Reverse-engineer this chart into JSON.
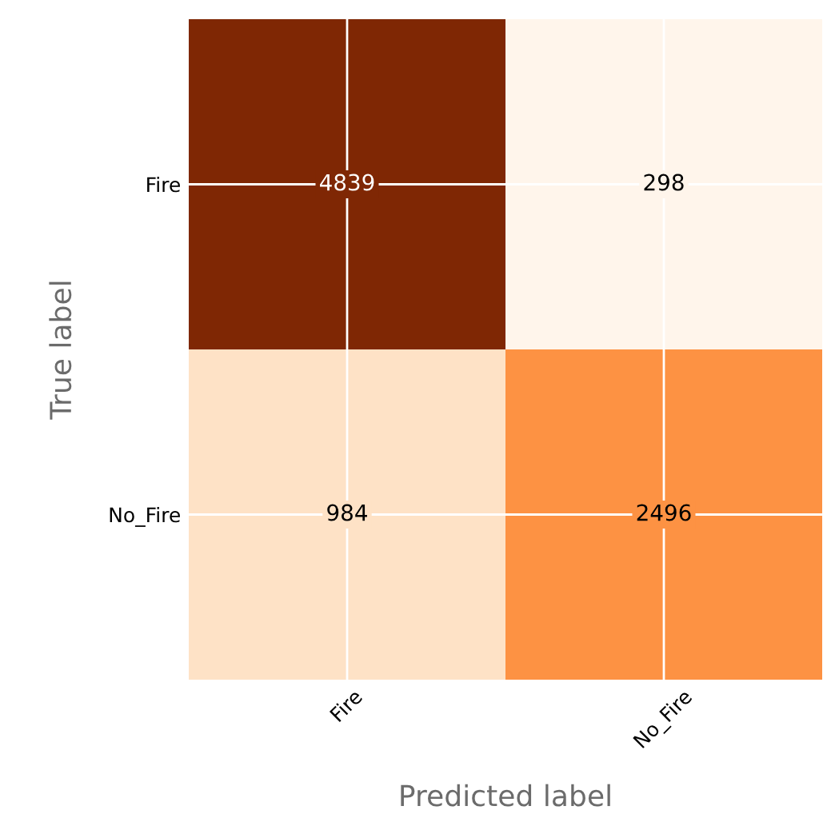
{
  "chart_data": {
    "type": "heatmap",
    "xlabel": "Predicted label",
    "ylabel": "True label",
    "categories": [
      "Fire",
      "No_Fire"
    ],
    "y_categories": [
      "Fire",
      "No_Fire"
    ],
    "cells": [
      [
        4839,
        298
      ],
      [
        984,
        2496
      ]
    ],
    "data_labels": true,
    "grid": true
  }
}
